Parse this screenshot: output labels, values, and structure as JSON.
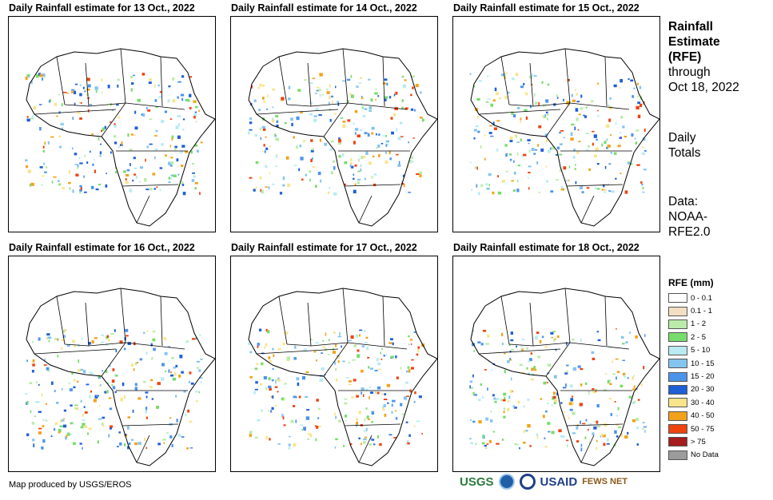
{
  "panels": [
    {
      "title": "Daily Rainfall estimate for 13 Oct., 2022"
    },
    {
      "title": "Daily Rainfall estimate for 14 Oct., 2022"
    },
    {
      "title": "Daily Rainfall estimate for 15 Oct., 2022"
    },
    {
      "title": "Daily Rainfall estimate for 16 Oct., 2022"
    },
    {
      "title": "Daily Rainfall estimate for 17 Oct., 2022"
    },
    {
      "title": "Daily Rainfall estimate for 18 Oct., 2022"
    }
  ],
  "side_info": {
    "title_line1": "Rainfall",
    "title_line2": "Estimate",
    "title_line3": "(RFE)",
    "through_label": "through",
    "through_date": "Oct 18, 2022",
    "totals_line1": "Daily",
    "totals_line2": "Totals",
    "data_line1": "Data:",
    "data_line2": "NOAA-",
    "data_line3": "RFE2.0"
  },
  "legend": {
    "title": "RFE (mm)",
    "items": [
      {
        "label": "0 - 0.1",
        "color": "#ffffff"
      },
      {
        "label": "0.1 - 1",
        "color": "#f2dfc2"
      },
      {
        "label": "1 - 2",
        "color": "#b8eca8"
      },
      {
        "label": "2 - 5",
        "color": "#78dc6c"
      },
      {
        "label": "5 - 10",
        "color": "#b8ecf2"
      },
      {
        "label": "10 - 15",
        "color": "#84c4f0"
      },
      {
        "label": "15 - 20",
        "color": "#4c94ea"
      },
      {
        "label": "20 - 30",
        "color": "#1f5fd6"
      },
      {
        "label": "30 - 40",
        "color": "#f8e48a"
      },
      {
        "label": "40 - 50",
        "color": "#f2a21a"
      },
      {
        "label": "50 - 75",
        "color": "#ee4410"
      },
      {
        "label": "> 75",
        "color": "#a41c1c"
      },
      {
        "label": "No Data",
        "color": "#9b9b9b"
      }
    ]
  },
  "footer": {
    "credit": "Map produced by USGS/EROS",
    "logos": [
      "USGS",
      "NOAA",
      "USAID",
      "FEWS NET"
    ]
  }
}
